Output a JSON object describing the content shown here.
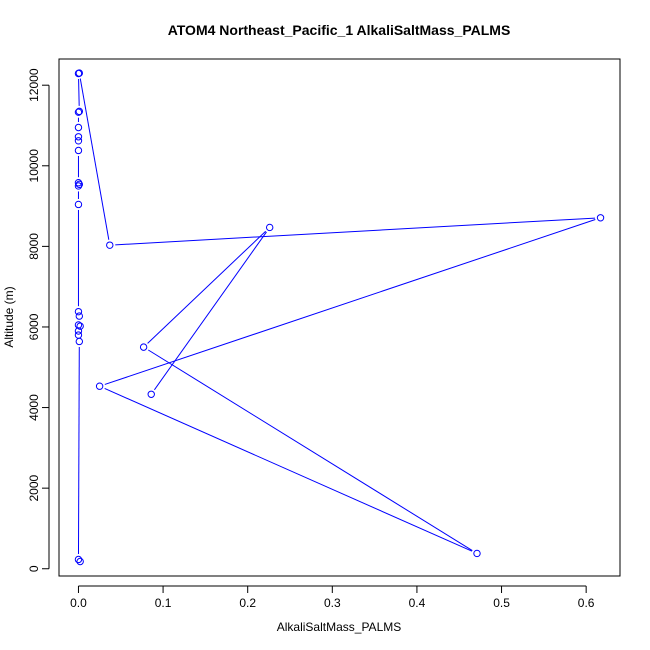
{
  "chart_data": {
    "type": "line",
    "title": "ATOM4 Northeast_Pacific_1 AlkaliSaltMass_PALMS",
    "xlabel": "AlkaliSaltMass_PALMS",
    "ylabel": "Altitude (m)",
    "xlim": [
      -0.023,
      0.64
    ],
    "ylim": [
      -180,
      12650
    ],
    "x_ticks": [
      0.0,
      0.1,
      0.2,
      0.3,
      0.4,
      0.5,
      0.6
    ],
    "x_tick_labels": [
      "0.0",
      "0.1",
      "0.2",
      "0.3",
      "0.4",
      "0.5",
      "0.6"
    ],
    "y_ticks": [
      0,
      2000,
      4000,
      6000,
      8000,
      10000,
      12000
    ],
    "y_tick_labels": [
      "0",
      "2000",
      "4000",
      "6000",
      "8000",
      "10000",
      "12000"
    ],
    "grid": false,
    "series": [
      {
        "color": "#0000ff",
        "marker": "open-circle",
        "points": [
          {
            "x": 0.002,
            "y": 180
          },
          {
            "x": 0.0,
            "y": 230
          },
          {
            "x": 0.001,
            "y": 5640
          },
          {
            "x": 0.0,
            "y": 5800
          },
          {
            "x": 0.0,
            "y": 5900
          },
          {
            "x": 0.002,
            "y": 6020
          },
          {
            "x": 0.0,
            "y": 6050
          },
          {
            "x": 0.001,
            "y": 6270
          },
          {
            "x": 0.0,
            "y": 6380
          },
          {
            "x": 0.0,
            "y": 9040
          },
          {
            "x": 0.0,
            "y": 9500
          },
          {
            "x": 0.001,
            "y": 9540
          },
          {
            "x": 0.0,
            "y": 9580
          },
          {
            "x": 0.0,
            "y": 10380
          },
          {
            "x": 0.0,
            "y": 10620
          },
          {
            "x": 0.0,
            "y": 10720
          },
          {
            "x": 0.0,
            "y": 10950
          },
          {
            "x": 0.0,
            "y": 11330
          },
          {
            "x": 0.001,
            "y": 11350
          },
          {
            "x": 0.0,
            "y": 12290
          },
          {
            "x": 0.001,
            "y": 12300
          },
          {
            "x": 0.037,
            "y": 8030
          },
          {
            "x": 0.617,
            "y": 8710
          },
          {
            "x": 0.025,
            "y": 4530
          },
          {
            "x": 0.471,
            "y": 380
          },
          {
            "x": 0.077,
            "y": 5500
          },
          {
            "x": 0.226,
            "y": 8470
          },
          {
            "x": 0.086,
            "y": 4330
          }
        ]
      }
    ]
  }
}
